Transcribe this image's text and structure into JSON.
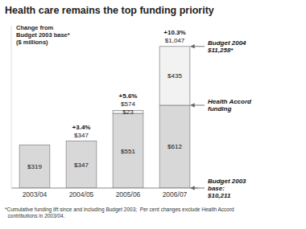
{
  "chart_data": {
    "type": "bar",
    "stacked": true,
    "title": "Health care remains the top funding priority",
    "ylabel": "Change from\nBudget 2003 base*\n($ millions)",
    "categories": [
      "2003/04",
      "2004/05",
      "2005/06",
      "2006/07"
    ],
    "series": [
      {
        "values": [
          319,
          347,
          551,
          612
        ],
        "value_labels": [
          "$319",
          "$347",
          "$551",
          "$612"
        ],
        "color": "#d8d8d8"
      },
      {
        "values": [
          0,
          0,
          23,
          435
        ],
        "value_labels": [
          null,
          null,
          "$23",
          "$435"
        ],
        "color": "#f2f2f2"
      }
    ],
    "totals": {
      "values": [
        null,
        347,
        574,
        1047
      ],
      "value_labels": [
        null,
        "$347",
        "$574",
        "$1,047"
      ],
      "pct_labels": [
        null,
        "+3.4%",
        "+5.6%",
        "+10.3%"
      ]
    },
    "annotations": [
      {
        "text": "Budget 2004\n$11,258*",
        "y": 1047
      },
      {
        "text": "Health Accord\nfunding",
        "y": 612
      },
      {
        "text": "Budget 2003\nbase:\n$10,211",
        "y": 0
      }
    ],
    "footnote": "*Cumulative funding lift since and including Budget 2003;  Per cent changes exclude Health Accord\n  contributions in 2003/04.",
    "ylim": [
      0,
      1200
    ],
    "tick_labels": "x",
    "data_labels": true
  }
}
